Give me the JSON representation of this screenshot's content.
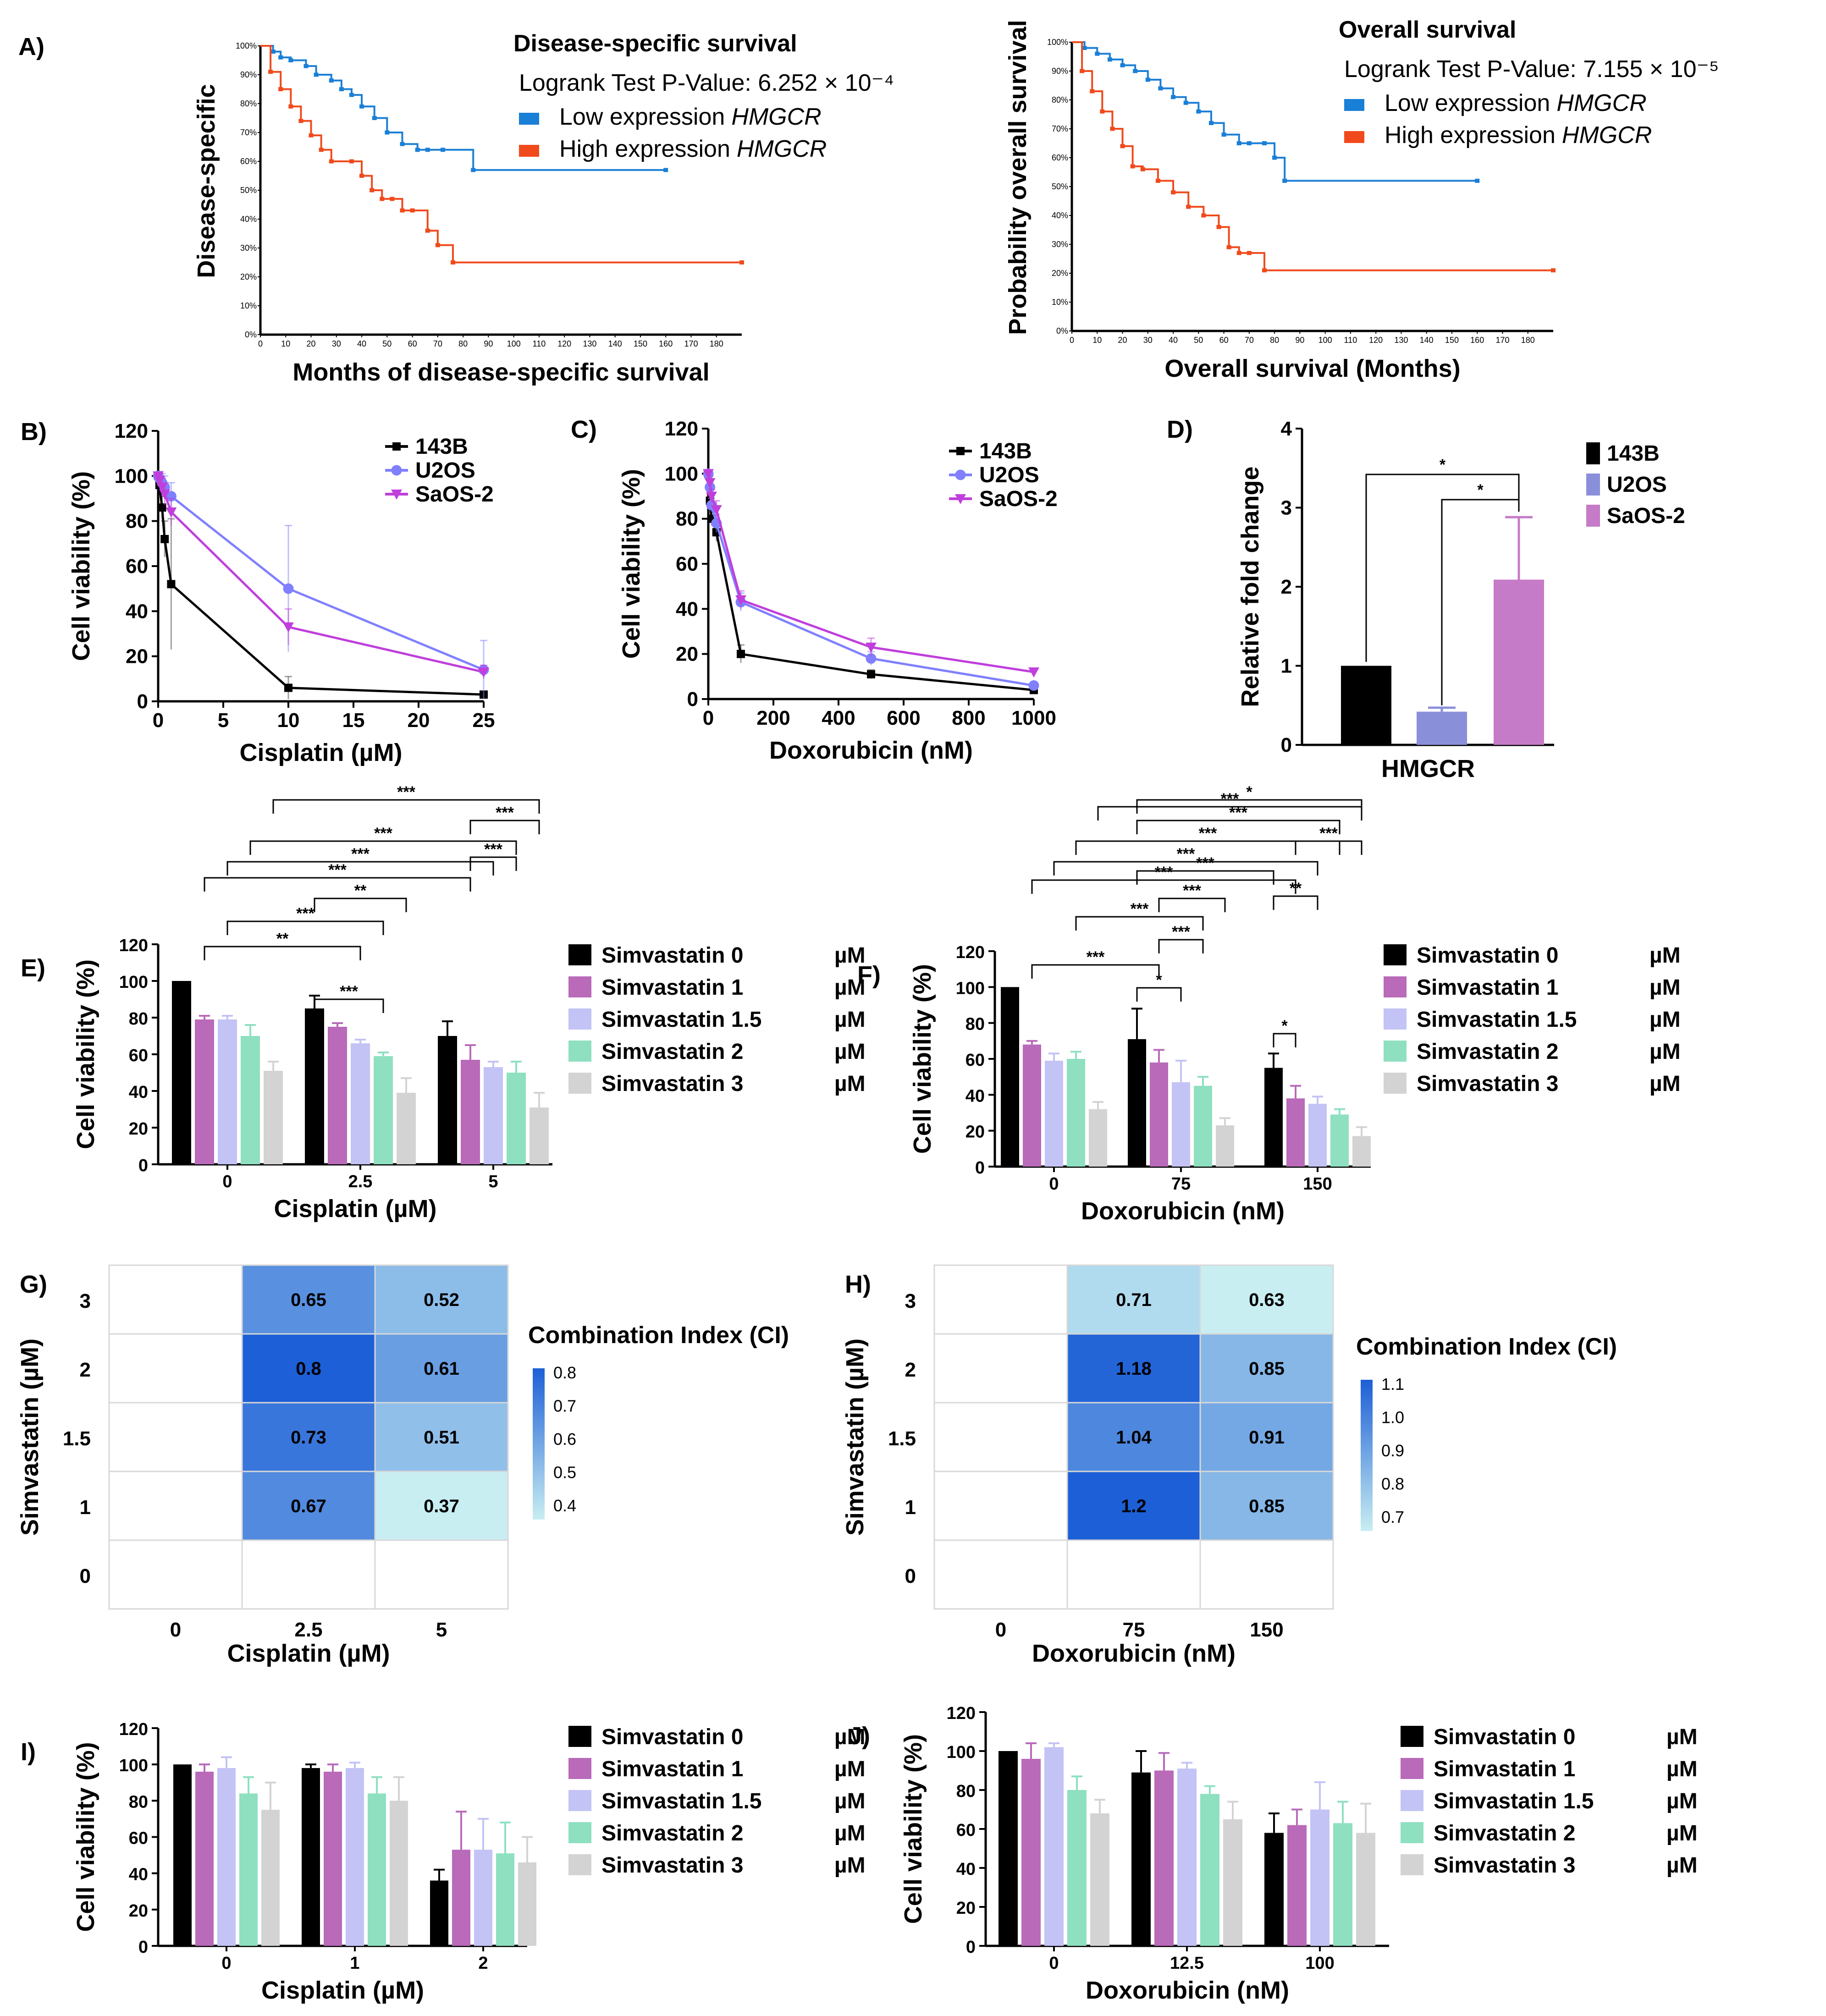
{
  "chart_data": [
    {
      "id": "A1",
      "panel_label": "A)",
      "type": "line",
      "title": "Disease-specific survival",
      "pvalue_text": "Logrank Test P-Value: 6.252 × 10⁻⁴",
      "xlabel": "Months of disease-specific survival",
      "ylabel": "Disease-specific",
      "xlim": [
        0,
        190
      ],
      "ylim": [
        0,
        100
      ],
      "xticks": [
        "0",
        "10",
        "20",
        "30",
        "40",
        "50",
        "60",
        "70",
        "80",
        "90",
        "100",
        "110",
        "120",
        "130",
        "140",
        "150",
        "160",
        "170",
        "180"
      ],
      "yticks": [
        "0%",
        "10%",
        "20%",
        "30%",
        "40%",
        "50%",
        "60%",
        "70%",
        "80%",
        "90%",
        "100%"
      ],
      "series": [
        {
          "name": "Low expression",
          "gene": "HMGCR",
          "color": "#1a7fd6",
          "x": [
            0,
            5,
            8,
            12,
            18,
            22,
            28,
            32,
            36,
            40,
            45,
            50,
            56,
            62,
            66,
            72,
            84,
            160
          ],
          "y": [
            100,
            98,
            96,
            95,
            93,
            90,
            88,
            85,
            83,
            79,
            75,
            70,
            66,
            64,
            64,
            64,
            57,
            57
          ]
        },
        {
          "name": "High expression",
          "gene": "HMGCR",
          "color": "#f04a1c",
          "x": [
            0,
            4,
            8,
            12,
            16,
            20,
            24,
            28,
            36,
            40,
            44,
            48,
            52,
            56,
            60,
            66,
            70,
            76,
            190
          ],
          "y": [
            100,
            91,
            85,
            79,
            74,
            69,
            64,
            60,
            60,
            55,
            50,
            47,
            47,
            43,
            43,
            36,
            31,
            25,
            25
          ]
        }
      ]
    },
    {
      "id": "A2",
      "type": "line",
      "title": "Overall survival",
      "pvalue_text": "Logrank Test P-Value: 7.155 × 10⁻⁵",
      "xlabel": "Overall survival (Months)",
      "ylabel": "Probability overall survival",
      "xlim": [
        0,
        190
      ],
      "ylim": [
        0,
        100
      ],
      "xticks": [
        "0",
        "10",
        "20",
        "30",
        "40",
        "50",
        "60",
        "70",
        "80",
        "90",
        "100",
        "110",
        "120",
        "130",
        "140",
        "150",
        "160",
        "170",
        "180"
      ],
      "yticks": [
        "0%",
        "10%",
        "20%",
        "30%",
        "40%",
        "50%",
        "60%",
        "70%",
        "80%",
        "90%",
        "100%"
      ],
      "series": [
        {
          "name": "Low expression",
          "gene": "HMGCR",
          "color": "#1a7fd6",
          "x": [
            0,
            5,
            10,
            15,
            20,
            25,
            30,
            35,
            40,
            45,
            50,
            55,
            60,
            66,
            70,
            76,
            80,
            84,
            160
          ],
          "y": [
            100,
            98,
            96,
            94,
            92,
            90,
            87,
            84,
            81,
            79,
            76,
            72,
            68,
            65,
            65,
            65,
            60,
            52,
            52
          ]
        },
        {
          "name": "High expression",
          "gene": "HMGCR",
          "color": "#f04a1c",
          "x": [
            0,
            4,
            8,
            12,
            16,
            20,
            24,
            28,
            34,
            40,
            46,
            52,
            58,
            62,
            66,
            70,
            76,
            190
          ],
          "y": [
            100,
            90,
            83,
            76,
            70,
            64,
            57,
            56,
            52,
            48,
            43,
            40,
            36,
            29,
            27,
            27,
            21,
            21
          ]
        }
      ]
    },
    {
      "id": "B",
      "panel_label": "B)",
      "type": "line",
      "xlabel": "Cisplatin (µM)",
      "ylabel": "Cell viability (%)",
      "xlim": [
        0,
        25
      ],
      "ylim": [
        0,
        120
      ],
      "xticks": [
        "0",
        "5",
        "10",
        "15",
        "20",
        "25"
      ],
      "yticks": [
        "0",
        "20",
        "40",
        "60",
        "80",
        "100",
        "120"
      ],
      "series": [
        {
          "name": "143B",
          "color": "#000000",
          "marker": "square",
          "x": [
            0,
            0.1,
            0.3,
            0.5,
            1,
            10,
            25
          ],
          "y": [
            100,
            96,
            86,
            72,
            52,
            6,
            3
          ],
          "err": [
            0,
            3,
            5,
            8,
            29,
            5,
            1
          ]
        },
        {
          "name": "U2OS",
          "color": "#8080ff",
          "marker": "circle",
          "x": [
            0,
            0.1,
            0.3,
            0.5,
            1,
            10,
            25
          ],
          "y": [
            100,
            99,
            97,
            95,
            91,
            50,
            14
          ],
          "err": [
            0,
            3,
            4,
            5,
            6,
            28,
            13
          ]
        },
        {
          "name": "SaOS-2",
          "color": "#c03fdc",
          "marker": "triangle",
          "x": [
            0,
            0.1,
            0.3,
            0.5,
            1,
            10,
            25
          ],
          "y": [
            100,
            98,
            95,
            92,
            84,
            33,
            13
          ],
          "err": [
            0,
            3,
            4,
            5,
            6,
            8,
            3
          ]
        }
      ]
    },
    {
      "id": "C",
      "panel_label": "C)",
      "type": "line",
      "xlabel": "Doxorubicin (nM)",
      "ylabel": "Cell viability (%)",
      "xlim": [
        0,
        1000
      ],
      "ylim": [
        0,
        120
      ],
      "xticks": [
        "0",
        "200",
        "400",
        "600",
        "800",
        "1000"
      ],
      "yticks": [
        "0",
        "20",
        "40",
        "60",
        "80",
        "100",
        "120"
      ],
      "series": [
        {
          "name": "143B",
          "color": "#000000",
          "marker": "square",
          "x": [
            0,
            5,
            10,
            25,
            100,
            500,
            1000
          ],
          "y": [
            100,
            88,
            80,
            74,
            20,
            11,
            4
          ],
          "err": [
            0,
            3,
            3,
            4,
            4,
            2,
            1
          ]
        },
        {
          "name": "U2OS",
          "color": "#8080ff",
          "marker": "circle",
          "x": [
            0,
            5,
            10,
            25,
            100,
            500,
            1000
          ],
          "y": [
            100,
            94,
            86,
            78,
            43,
            18,
            6
          ],
          "err": [
            0,
            3,
            3,
            4,
            4,
            3,
            1
          ]
        },
        {
          "name": "SaOS-2",
          "color": "#c03fdc",
          "marker": "triangle",
          "x": [
            0,
            5,
            10,
            25,
            100,
            500,
            1000
          ],
          "y": [
            100,
            96,
            90,
            84,
            44,
            23,
            12
          ],
          "err": [
            0,
            3,
            3,
            4,
            4,
            4,
            1
          ]
        }
      ]
    },
    {
      "id": "D",
      "panel_label": "D)",
      "type": "bar",
      "xlabel": "HMGCR",
      "ylabel": "Relative fold change",
      "ylim": [
        0,
        4
      ],
      "yticks": [
        "0",
        "1",
        "2",
        "3",
        "4"
      ],
      "categories": [
        "143B",
        "U2OS",
        "SaOS-2"
      ],
      "values": [
        1.0,
        0.42,
        2.09
      ],
      "err": [
        0,
        0.05,
        0.79
      ],
      "colors": [
        "#000000",
        "#8a8fd9",
        "#c57bc7"
      ],
      "annotations": [
        "*",
        "*"
      ]
    },
    {
      "id": "E",
      "panel_label": "E)",
      "type": "bar",
      "xlabel": "Cisplatin (µM)",
      "ylabel": "Cell viability (%)",
      "ylim": [
        0,
        120
      ],
      "yticks": [
        "0",
        "20",
        "40",
        "60",
        "80",
        "100",
        "120"
      ],
      "categories": [
        "0",
        "2.5",
        "5"
      ],
      "series": [
        {
          "name": "Simvastatin 0",
          "unit": "µM",
          "color": "#000000",
          "values": [
            100,
            85,
            70
          ],
          "err": [
            0,
            7,
            8
          ]
        },
        {
          "name": "Simvastatin 1",
          "unit": "µM",
          "color": "#b96ab9",
          "values": [
            79,
            75,
            57
          ],
          "err": [
            2,
            2,
            8
          ]
        },
        {
          "name": "Simvastatin 1.5",
          "unit": "µM",
          "color": "#c3c3f5",
          "values": [
            79,
            66,
            53
          ],
          "err": [
            2,
            2,
            3
          ]
        },
        {
          "name": "Simvastatin 2",
          "unit": "µM",
          "color": "#8ee0c0",
          "values": [
            70,
            59,
            50
          ],
          "err": [
            6,
            2,
            6
          ]
        },
        {
          "name": "Simvastatin 3",
          "unit": "µM",
          "color": "#d3d3d3",
          "values": [
            51,
            39,
            31
          ],
          "err": [
            5,
            8,
            8
          ]
        }
      ],
      "significance": [
        "***",
        "***",
        "***",
        "***",
        "***",
        "***",
        "**",
        "***",
        "**",
        "***"
      ]
    },
    {
      "id": "F",
      "panel_label": "F)",
      "type": "bar",
      "xlabel": "Doxorubicin (nM)",
      "ylabel": "Cell viability (%)",
      "ylim": [
        0,
        120
      ],
      "yticks": [
        "0",
        "20",
        "40",
        "60",
        "80",
        "100",
        "120"
      ],
      "categories": [
        "0",
        "75",
        "150"
      ],
      "series": [
        {
          "name": "Simvastatin 0",
          "unit": "µM",
          "color": "#000000",
          "values": [
            100,
            71,
            55
          ],
          "err": [
            0,
            17,
            8
          ]
        },
        {
          "name": "Simvastatin 1",
          "unit": "µM",
          "color": "#b96ab9",
          "values": [
            68,
            58,
            38
          ],
          "err": [
            2,
            7,
            7
          ]
        },
        {
          "name": "Simvastatin 1.5",
          "unit": "µM",
          "color": "#c3c3f5",
          "values": [
            59,
            47,
            35
          ],
          "err": [
            4,
            12,
            4
          ]
        },
        {
          "name": "Simvastatin 2",
          "unit": "µM",
          "color": "#8ee0c0",
          "values": [
            60,
            45,
            29
          ],
          "err": [
            4,
            5,
            3
          ]
        },
        {
          "name": "Simvastatin 3",
          "unit": "µM",
          "color": "#d3d3d3",
          "values": [
            32,
            23,
            17
          ],
          "err": [
            4,
            4,
            5
          ]
        }
      ],
      "significance": [
        "*",
        "***",
        "***",
        "***",
        "***",
        "***",
        "***",
        "***",
        "**",
        "***",
        "***",
        "***",
        "***",
        "*",
        "*"
      ]
    },
    {
      "id": "G",
      "panel_label": "G)",
      "type": "heatmap",
      "xlabel": "Cisplatin (µM)",
      "ylabel": "Simvastatin (µM)",
      "x_categories": [
        "0",
        "2.5",
        "5"
      ],
      "y_categories": [
        "3",
        "2",
        "1.5",
        "1",
        "0"
      ],
      "values": [
        [
          null,
          0.65,
          0.52
        ],
        [
          null,
          0.8,
          0.61
        ],
        [
          null,
          0.73,
          0.51
        ],
        [
          null,
          0.67,
          0.37
        ],
        [
          null,
          null,
          null
        ]
      ],
      "colorbar_title": "Combination Index (CI)",
      "colorbar_ticks": [
        "0.8",
        "0.7",
        "0.6",
        "0.5",
        "0.4"
      ],
      "colorbar_range": [
        0.37,
        0.8
      ]
    },
    {
      "id": "H",
      "panel_label": "H)",
      "type": "heatmap",
      "xlabel": "Doxorubicin (nM)",
      "ylabel": "Simvastatin (µM)",
      "x_categories": [
        "0",
        "75",
        "150"
      ],
      "y_categories": [
        "3",
        "2",
        "1.5",
        "1",
        "0"
      ],
      "values": [
        [
          null,
          0.71,
          0.63
        ],
        [
          null,
          1.18,
          0.85
        ],
        [
          null,
          1.04,
          0.91
        ],
        [
          null,
          1.2,
          0.85
        ],
        [
          null,
          null,
          null
        ]
      ],
      "colorbar_title": "Combination Index (CI)",
      "colorbar_ticks": [
        "1.1",
        "1.0",
        "0.9",
        "0.8",
        "0.7"
      ],
      "colorbar_range": [
        0.63,
        1.2
      ]
    },
    {
      "id": "I",
      "panel_label": "I)",
      "type": "bar",
      "xlabel": "Cisplatin (µM)",
      "ylabel": "Cell viability (%)",
      "ylim": [
        0,
        120
      ],
      "yticks": [
        "0",
        "20",
        "40",
        "60",
        "80",
        "100",
        "120"
      ],
      "categories": [
        "0",
        "1",
        "2"
      ],
      "series": [
        {
          "name": "Simvastatin 0",
          "unit": "µM",
          "color": "#000000",
          "values": [
            100,
            98,
            36
          ],
          "err": [
            0,
            2,
            6
          ]
        },
        {
          "name": "Simvastatin 1",
          "unit": "µM",
          "color": "#b96ab9",
          "values": [
            96,
            96,
            53
          ],
          "err": [
            4,
            4,
            21
          ]
        },
        {
          "name": "Simvastatin 1.5",
          "unit": "µM",
          "color": "#c3c3f5",
          "values": [
            98,
            98,
            53
          ],
          "err": [
            6,
            3,
            17
          ]
        },
        {
          "name": "Simvastatin 2",
          "unit": "µM",
          "color": "#8ee0c0",
          "values": [
            84,
            84,
            51
          ],
          "err": [
            9,
            9,
            17
          ]
        },
        {
          "name": "Simvastatin 3",
          "unit": "µM",
          "color": "#d3d3d3",
          "values": [
            75,
            80,
            46
          ],
          "err": [
            15,
            13,
            14
          ]
        }
      ]
    },
    {
      "id": "J",
      "panel_label": "J)",
      "type": "bar",
      "xlabel": "Doxorubicin (nM)",
      "ylabel": "Cell viability (%)",
      "ylim": [
        0,
        120
      ],
      "yticks": [
        "0",
        "20",
        "40",
        "60",
        "80",
        "100",
        "120"
      ],
      "categories": [
        "0",
        "12.5",
        "100"
      ],
      "series": [
        {
          "name": "Simvastatin 0",
          "unit": "µM",
          "color": "#000000",
          "values": [
            100,
            89,
            58
          ],
          "err": [
            0,
            11,
            10
          ]
        },
        {
          "name": "Simvastatin 1",
          "unit": "µM",
          "color": "#b96ab9",
          "values": [
            96,
            90,
            62
          ],
          "err": [
            8,
            9,
            8
          ]
        },
        {
          "name": "Simvastatin 1.5",
          "unit": "µM",
          "color": "#c3c3f5",
          "values": [
            102,
            91,
            70
          ],
          "err": [
            2,
            3,
            14
          ]
        },
        {
          "name": "Simvastatin 2",
          "unit": "µM",
          "color": "#8ee0c0",
          "values": [
            80,
            78,
            63
          ],
          "err": [
            7,
            4,
            11
          ]
        },
        {
          "name": "Simvastatin 3",
          "unit": "µM",
          "color": "#d3d3d3",
          "values": [
            68,
            65,
            58
          ],
          "err": [
            7,
            9,
            15
          ]
        }
      ]
    }
  ]
}
